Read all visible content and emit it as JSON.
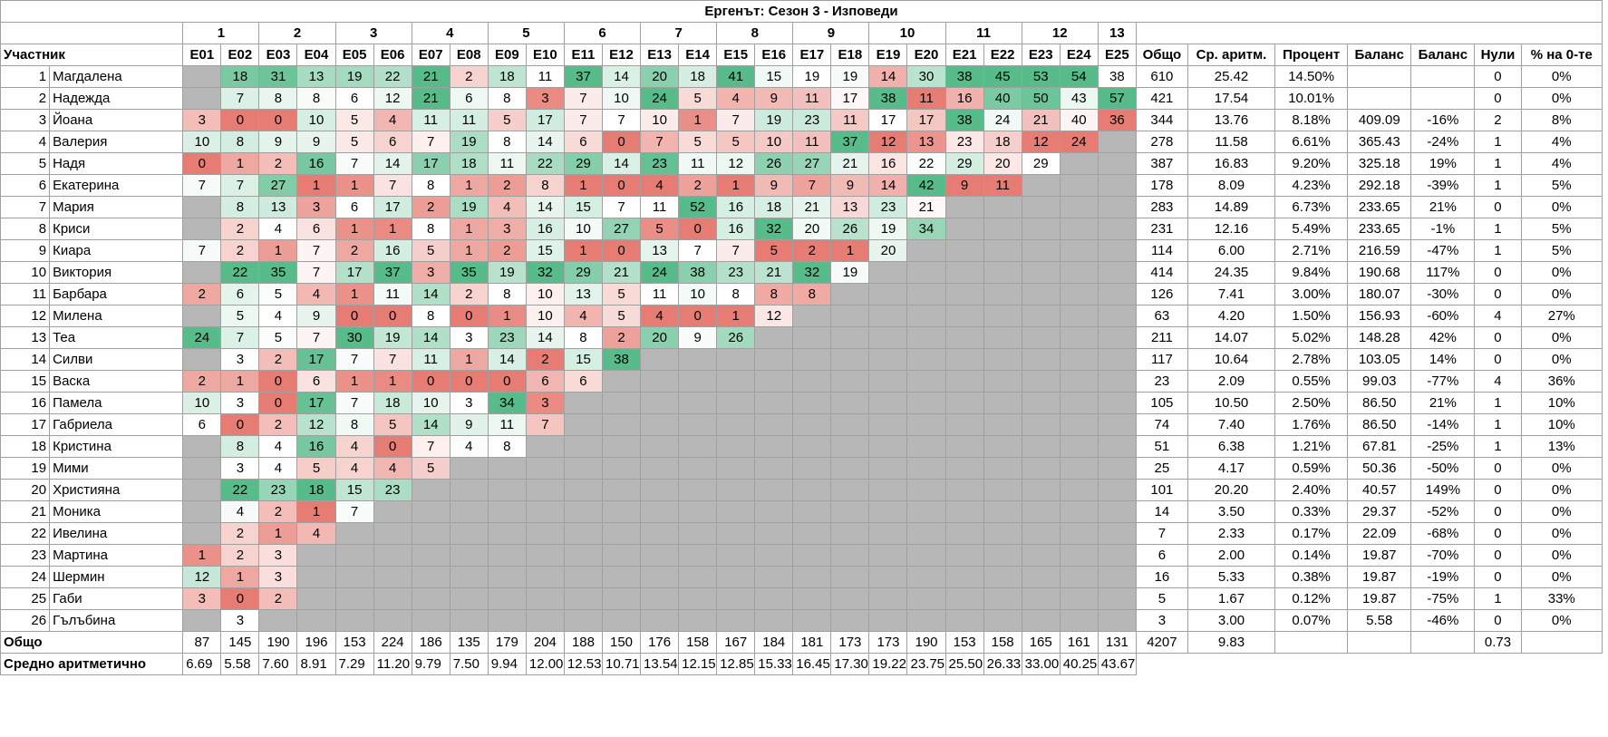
{
  "title": "Ергенът: Сезон 3 - Изповеди",
  "weeks": [
    1,
    2,
    3,
    4,
    5,
    6,
    7,
    8,
    9,
    10,
    11,
    12,
    13
  ],
  "columns": [
    "Участник",
    "E01",
    "E02",
    "E03",
    "E04",
    "E05",
    "E06",
    "E07",
    "E08",
    "E09",
    "E10",
    "E11",
    "E12",
    "E13",
    "E14",
    "E15",
    "E16",
    "E17",
    "E18",
    "E19",
    "E20",
    "E21",
    "E22",
    "E23",
    "E24",
    "E25",
    "Общо",
    "Ср. аритм.",
    "Процент",
    "Баланс",
    "Баланс",
    "Нули",
    "% на 0-те"
  ],
  "rows": [
    {
      "rank": 1,
      "name": "Магдалена",
      "episodes": [
        null,
        18,
        31,
        13,
        19,
        22,
        21,
        2,
        18,
        11,
        37,
        14,
        20,
        18,
        41,
        15,
        19,
        19,
        14,
        30,
        38,
        45,
        53,
        54,
        38
      ],
      "total": 610,
      "average": "25.42",
      "percent": "14.50%",
      "balance": null,
      "balance_pct": null,
      "zeros": 0,
      "zeros_pct": "0%"
    },
    {
      "rank": 2,
      "name": "Надежда",
      "episodes": [
        null,
        7,
        8,
        8,
        6,
        12,
        21,
        6,
        8,
        3,
        7,
        10,
        24,
        5,
        4,
        9,
        11,
        17,
        38,
        11,
        16,
        40,
        50,
        43,
        57
      ],
      "total": 421,
      "average": "17.54",
      "percent": "10.01%",
      "balance": null,
      "balance_pct": null,
      "zeros": 0,
      "zeros_pct": "0%"
    },
    {
      "rank": 3,
      "name": "Йоана",
      "episodes": [
        3,
        0,
        0,
        10,
        5,
        4,
        11,
        11,
        5,
        17,
        7,
        7,
        10,
        1,
        7,
        19,
        23,
        11,
        17,
        17,
        38,
        24,
        21,
        40,
        36
      ],
      "total": 344,
      "average": "13.76",
      "percent": "8.18%",
      "balance": "409.09",
      "balance_pct": "-16%",
      "zeros": 2,
      "zeros_pct": "8%"
    },
    {
      "rank": 4,
      "name": "Валерия",
      "episodes": [
        10,
        8,
        9,
        9,
        5,
        6,
        7,
        19,
        8,
        14,
        6,
        0,
        7,
        5,
        5,
        10,
        11,
        37,
        12,
        13,
        23,
        18,
        12,
        24,
        null
      ],
      "total": 278,
      "average": "11.58",
      "percent": "6.61%",
      "balance": "365.43",
      "balance_pct": "-24%",
      "zeros": 1,
      "zeros_pct": "4%"
    },
    {
      "rank": 5,
      "name": "Надя",
      "episodes": [
        0,
        1,
        2,
        16,
        7,
        14,
        17,
        18,
        11,
        22,
        29,
        14,
        23,
        11,
        12,
        26,
        27,
        21,
        16,
        22,
        29,
        20,
        29,
        null,
        null
      ],
      "total": 387,
      "average": "16.83",
      "percent": "9.20%",
      "balance": "325.18",
      "balance_pct": "19%",
      "zeros": 1,
      "zeros_pct": "4%"
    },
    {
      "rank": 6,
      "name": "Екатерина",
      "episodes": [
        7,
        7,
        27,
        1,
        1,
        7,
        8,
        1,
        2,
        8,
        1,
        0,
        4,
        2,
        1,
        9,
        7,
        9,
        14,
        42,
        9,
        11,
        null,
        null,
        null
      ],
      "total": 178,
      "average": "8.09",
      "percent": "4.23%",
      "balance": "292.18",
      "balance_pct": "-39%",
      "zeros": 1,
      "zeros_pct": "5%"
    },
    {
      "rank": 7,
      "name": "Мария",
      "episodes": [
        null,
        8,
        13,
        3,
        6,
        17,
        2,
        19,
        4,
        14,
        15,
        7,
        11,
        52,
        16,
        18,
        21,
        13,
        23,
        21,
        null,
        null,
        null,
        null,
        null
      ],
      "total": 283,
      "average": "14.89",
      "percent": "6.73%",
      "balance": "233.65",
      "balance_pct": "21%",
      "zeros": 0,
      "zeros_pct": "0%"
    },
    {
      "rank": 8,
      "name": "Криси",
      "episodes": [
        null,
        2,
        4,
        6,
        1,
        1,
        8,
        1,
        3,
        16,
        10,
        27,
        5,
        0,
        16,
        32,
        20,
        26,
        19,
        34,
        null,
        null,
        null,
        null,
        null
      ],
      "total": 231,
      "average": "12.16",
      "percent": "5.49%",
      "balance": "233.65",
      "balance_pct": "-1%",
      "zeros": 1,
      "zeros_pct": "5%"
    },
    {
      "rank": 9,
      "name": "Киара",
      "episodes": [
        7,
        2,
        1,
        7,
        2,
        16,
        5,
        1,
        2,
        15,
        1,
        0,
        13,
        7,
        7,
        5,
        2,
        1,
        20,
        null,
        null,
        null,
        null,
        null,
        null
      ],
      "total": 114,
      "average": "6.00",
      "percent": "2.71%",
      "balance": "216.59",
      "balance_pct": "-47%",
      "zeros": 1,
      "zeros_pct": "5%"
    },
    {
      "rank": 10,
      "name": "Виктория",
      "episodes": [
        null,
        22,
        35,
        7,
        17,
        37,
        3,
        35,
        19,
        32,
        29,
        21,
        24,
        38,
        23,
        21,
        32,
        19,
        null,
        null,
        null,
        null,
        null,
        null,
        null
      ],
      "total": 414,
      "average": "24.35",
      "percent": "9.84%",
      "balance": "190.68",
      "balance_pct": "117%",
      "zeros": 0,
      "zeros_pct": "0%"
    },
    {
      "rank": 11,
      "name": "Барбара",
      "episodes": [
        2,
        6,
        5,
        4,
        1,
        11,
        14,
        2,
        8,
        10,
        13,
        5,
        11,
        10,
        8,
        8,
        8,
        null,
        null,
        null,
        null,
        null,
        null,
        null,
        null
      ],
      "total": 126,
      "average": "7.41",
      "percent": "3.00%",
      "balance": "180.07",
      "balance_pct": "-30%",
      "zeros": 0,
      "zeros_pct": "0%"
    },
    {
      "rank": 12,
      "name": "Милена",
      "episodes": [
        null,
        5,
        4,
        9,
        0,
        0,
        8,
        0,
        1,
        10,
        4,
        5,
        4,
        0,
        1,
        12,
        null,
        null,
        null,
        null,
        null,
        null,
        null,
        null,
        null
      ],
      "total": 63,
      "average": "4.20",
      "percent": "1.50%",
      "balance": "156.93",
      "balance_pct": "-60%",
      "zeros": 4,
      "zeros_pct": "27%"
    },
    {
      "rank": 13,
      "name": "Теа",
      "episodes": [
        24,
        7,
        5,
        7,
        30,
        19,
        14,
        3,
        23,
        14,
        8,
        2,
        20,
        9,
        26,
        null,
        null,
        null,
        null,
        null,
        null,
        null,
        null,
        null,
        null
      ],
      "total": 211,
      "average": "14.07",
      "percent": "5.02%",
      "balance": "148.28",
      "balance_pct": "42%",
      "zeros": 0,
      "zeros_pct": "0%"
    },
    {
      "rank": 14,
      "name": "Силви",
      "episodes": [
        null,
        3,
        2,
        17,
        7,
        7,
        11,
        1,
        14,
        2,
        15,
        38,
        null,
        null,
        null,
        null,
        null,
        null,
        null,
        null,
        null,
        null,
        null,
        null,
        null
      ],
      "total": 117,
      "average": "10.64",
      "percent": "2.78%",
      "balance": "103.05",
      "balance_pct": "14%",
      "zeros": 0,
      "zeros_pct": "0%"
    },
    {
      "rank": 15,
      "name": "Васка",
      "episodes": [
        2,
        1,
        0,
        6,
        1,
        1,
        0,
        0,
        0,
        6,
        6,
        null,
        null,
        null,
        null,
        null,
        null,
        null,
        null,
        null,
        null,
        null,
        null,
        null,
        null
      ],
      "total": 23,
      "average": "2.09",
      "percent": "0.55%",
      "balance": "99.03",
      "balance_pct": "-77%",
      "zeros": 4,
      "zeros_pct": "36%"
    },
    {
      "rank": 16,
      "name": "Памела",
      "episodes": [
        10,
        3,
        0,
        17,
        7,
        18,
        10,
        3,
        34,
        3,
        null,
        null,
        null,
        null,
        null,
        null,
        null,
        null,
        null,
        null,
        null,
        null,
        null,
        null,
        null
      ],
      "total": 105,
      "average": "10.50",
      "percent": "2.50%",
      "balance": "86.50",
      "balance_pct": "21%",
      "zeros": 1,
      "zeros_pct": "10%"
    },
    {
      "rank": 17,
      "name": "Габриела",
      "episodes": [
        6,
        0,
        2,
        12,
        8,
        5,
        14,
        9,
        11,
        7,
        null,
        null,
        null,
        null,
        null,
        null,
        null,
        null,
        null,
        null,
        null,
        null,
        null,
        null,
        null
      ],
      "total": 74,
      "average": "7.40",
      "percent": "1.76%",
      "balance": "86.50",
      "balance_pct": "-14%",
      "zeros": 1,
      "zeros_pct": "10%"
    },
    {
      "rank": 18,
      "name": "Кристина",
      "episodes": [
        null,
        8,
        4,
        16,
        4,
        0,
        7,
        4,
        8,
        null,
        null,
        null,
        null,
        null,
        null,
        null,
        null,
        null,
        null,
        null,
        null,
        null,
        null,
        null,
        null
      ],
      "total": 51,
      "average": "6.38",
      "percent": "1.21%",
      "balance": "67.81",
      "balance_pct": "-25%",
      "zeros": 1,
      "zeros_pct": "13%"
    },
    {
      "rank": 19,
      "name": "Мими",
      "episodes": [
        null,
        3,
        4,
        5,
        4,
        4,
        5,
        null,
        null,
        null,
        null,
        null,
        null,
        null,
        null,
        null,
        null,
        null,
        null,
        null,
        null,
        null,
        null,
        null,
        null
      ],
      "total": 25,
      "average": "4.17",
      "percent": "0.59%",
      "balance": "50.36",
      "balance_pct": "-50%",
      "zeros": 0,
      "zeros_pct": "0%"
    },
    {
      "rank": 20,
      "name": "Християна",
      "episodes": [
        null,
        22,
        23,
        18,
        15,
        23,
        null,
        null,
        null,
        null,
        null,
        null,
        null,
        null,
        null,
        null,
        null,
        null,
        null,
        null,
        null,
        null,
        null,
        null,
        null
      ],
      "total": 101,
      "average": "20.20",
      "percent": "2.40%",
      "balance": "40.57",
      "balance_pct": "149%",
      "zeros": 0,
      "zeros_pct": "0%"
    },
    {
      "rank": 21,
      "name": "Моника",
      "episodes": [
        null,
        4,
        2,
        1,
        7,
        null,
        null,
        null,
        null,
        null,
        null,
        null,
        null,
        null,
        null,
        null,
        null,
        null,
        null,
        null,
        null,
        null,
        null,
        null,
        null
      ],
      "total": 14,
      "average": "3.50",
      "percent": "0.33%",
      "balance": "29.37",
      "balance_pct": "-52%",
      "zeros": 0,
      "zeros_pct": "0%"
    },
    {
      "rank": 22,
      "name": "Ивелина",
      "episodes": [
        null,
        2,
        1,
        4,
        null,
        null,
        null,
        null,
        null,
        null,
        null,
        null,
        null,
        null,
        null,
        null,
        null,
        null,
        null,
        null,
        null,
        null,
        null,
        null,
        null
      ],
      "total": 7,
      "average": "2.33",
      "percent": "0.17%",
      "balance": "22.09",
      "balance_pct": "-68%",
      "zeros": 0,
      "zeros_pct": "0%"
    },
    {
      "rank": 23,
      "name": "Мартина",
      "episodes": [
        1,
        2,
        3,
        null,
        null,
        null,
        null,
        null,
        null,
        null,
        null,
        null,
        null,
        null,
        null,
        null,
        null,
        null,
        null,
        null,
        null,
        null,
        null,
        null,
        null
      ],
      "total": 6,
      "average": "2.00",
      "percent": "0.14%",
      "balance": "19.87",
      "balance_pct": "-70%",
      "zeros": 0,
      "zeros_pct": "0%"
    },
    {
      "rank": 24,
      "name": "Шермин",
      "episodes": [
        12,
        1,
        3,
        null,
        null,
        null,
        null,
        null,
        null,
        null,
        null,
        null,
        null,
        null,
        null,
        null,
        null,
        null,
        null,
        null,
        null,
        null,
        null,
        null,
        null
      ],
      "total": 16,
      "average": "5.33",
      "percent": "0.38%",
      "balance": "19.87",
      "balance_pct": "-19%",
      "zeros": 0,
      "zeros_pct": "0%"
    },
    {
      "rank": 25,
      "name": "Габи",
      "episodes": [
        3,
        0,
        2,
        null,
        null,
        null,
        null,
        null,
        null,
        null,
        null,
        null,
        null,
        null,
        null,
        null,
        null,
        null,
        null,
        null,
        null,
        null,
        null,
        null,
        null
      ],
      "total": 5,
      "average": "1.67",
      "percent": "0.12%",
      "balance": "19.87",
      "balance_pct": "-75%",
      "zeros": 1,
      "zeros_pct": "33%"
    },
    {
      "rank": 26,
      "name": "Гълъбина",
      "episodes": [
        null,
        3,
        null,
        null,
        null,
        null,
        null,
        null,
        null,
        null,
        null,
        null,
        null,
        null,
        null,
        null,
        null,
        null,
        null,
        null,
        null,
        null,
        null,
        null,
        null
      ],
      "total": 3,
      "average": "3.00",
      "percent": "0.07%",
      "balance": "5.58",
      "balance_pct": "-46%",
      "zeros": 0,
      "zeros_pct": "0%"
    }
  ],
  "footer": {
    "total_label": "Общо",
    "totals": [
      87,
      145,
      190,
      196,
      153,
      224,
      186,
      135,
      179,
      204,
      188,
      150,
      176,
      158,
      167,
      184,
      181,
      173,
      173,
      190,
      153,
      158,
      165,
      161,
      131
    ],
    "grand_total": 4207,
    "grand_average": "9.83",
    "zeros_average": "0.73",
    "avg_label": "Средно аритметично",
    "averages": [
      "6.69",
      "5.58",
      "7.60",
      "8.91",
      "7.29",
      "11.20",
      "9.79",
      "7.50",
      "9.94",
      "12.00",
      "12.53",
      "10.71",
      "13.54",
      "12.15",
      "12.85",
      "15.33",
      "16.45",
      "17.30",
      "19.22",
      "23.75",
      "25.50",
      "26.33",
      "33.00",
      "40.25",
      "43.67"
    ]
  }
}
